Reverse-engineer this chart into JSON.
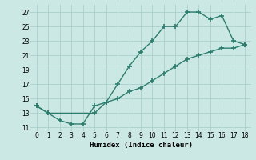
{
  "line1_x": [
    0,
    1,
    2,
    3,
    4,
    5,
    6,
    7,
    8,
    9,
    10,
    11,
    12,
    13,
    14,
    15,
    16,
    17,
    18
  ],
  "line1_y": [
    14,
    13,
    12,
    11.5,
    11.5,
    14,
    14.5,
    17,
    19.5,
    21.5,
    23,
    25,
    25,
    27,
    27,
    26,
    26.5,
    23,
    22.5
  ],
  "line2_x": [
    0,
    1,
    5,
    6,
    7,
    8,
    9,
    10,
    11,
    12,
    13,
    14,
    15,
    16,
    17,
    18
  ],
  "line2_y": [
    14,
    13,
    13,
    14.5,
    15,
    16,
    16.5,
    17.5,
    18.5,
    19.5,
    20.5,
    21,
    21.5,
    22,
    22,
    22.5
  ],
  "color": "#2d7d6e",
  "bg_color": "#cce8e4",
  "grid_color": "#aacfca",
  "xlabel": "Humidex (Indice chaleur)",
  "ylim": [
    10.5,
    28
  ],
  "xlim": [
    -0.5,
    18.5
  ],
  "yticks": [
    11,
    13,
    15,
    17,
    19,
    21,
    23,
    25,
    27
  ],
  "xticks": [
    0,
    1,
    2,
    3,
    4,
    5,
    6,
    7,
    8,
    9,
    10,
    11,
    12,
    13,
    14,
    15,
    16,
    17,
    18
  ],
  "marker": "+",
  "markersize": 4,
  "linewidth": 1.0
}
